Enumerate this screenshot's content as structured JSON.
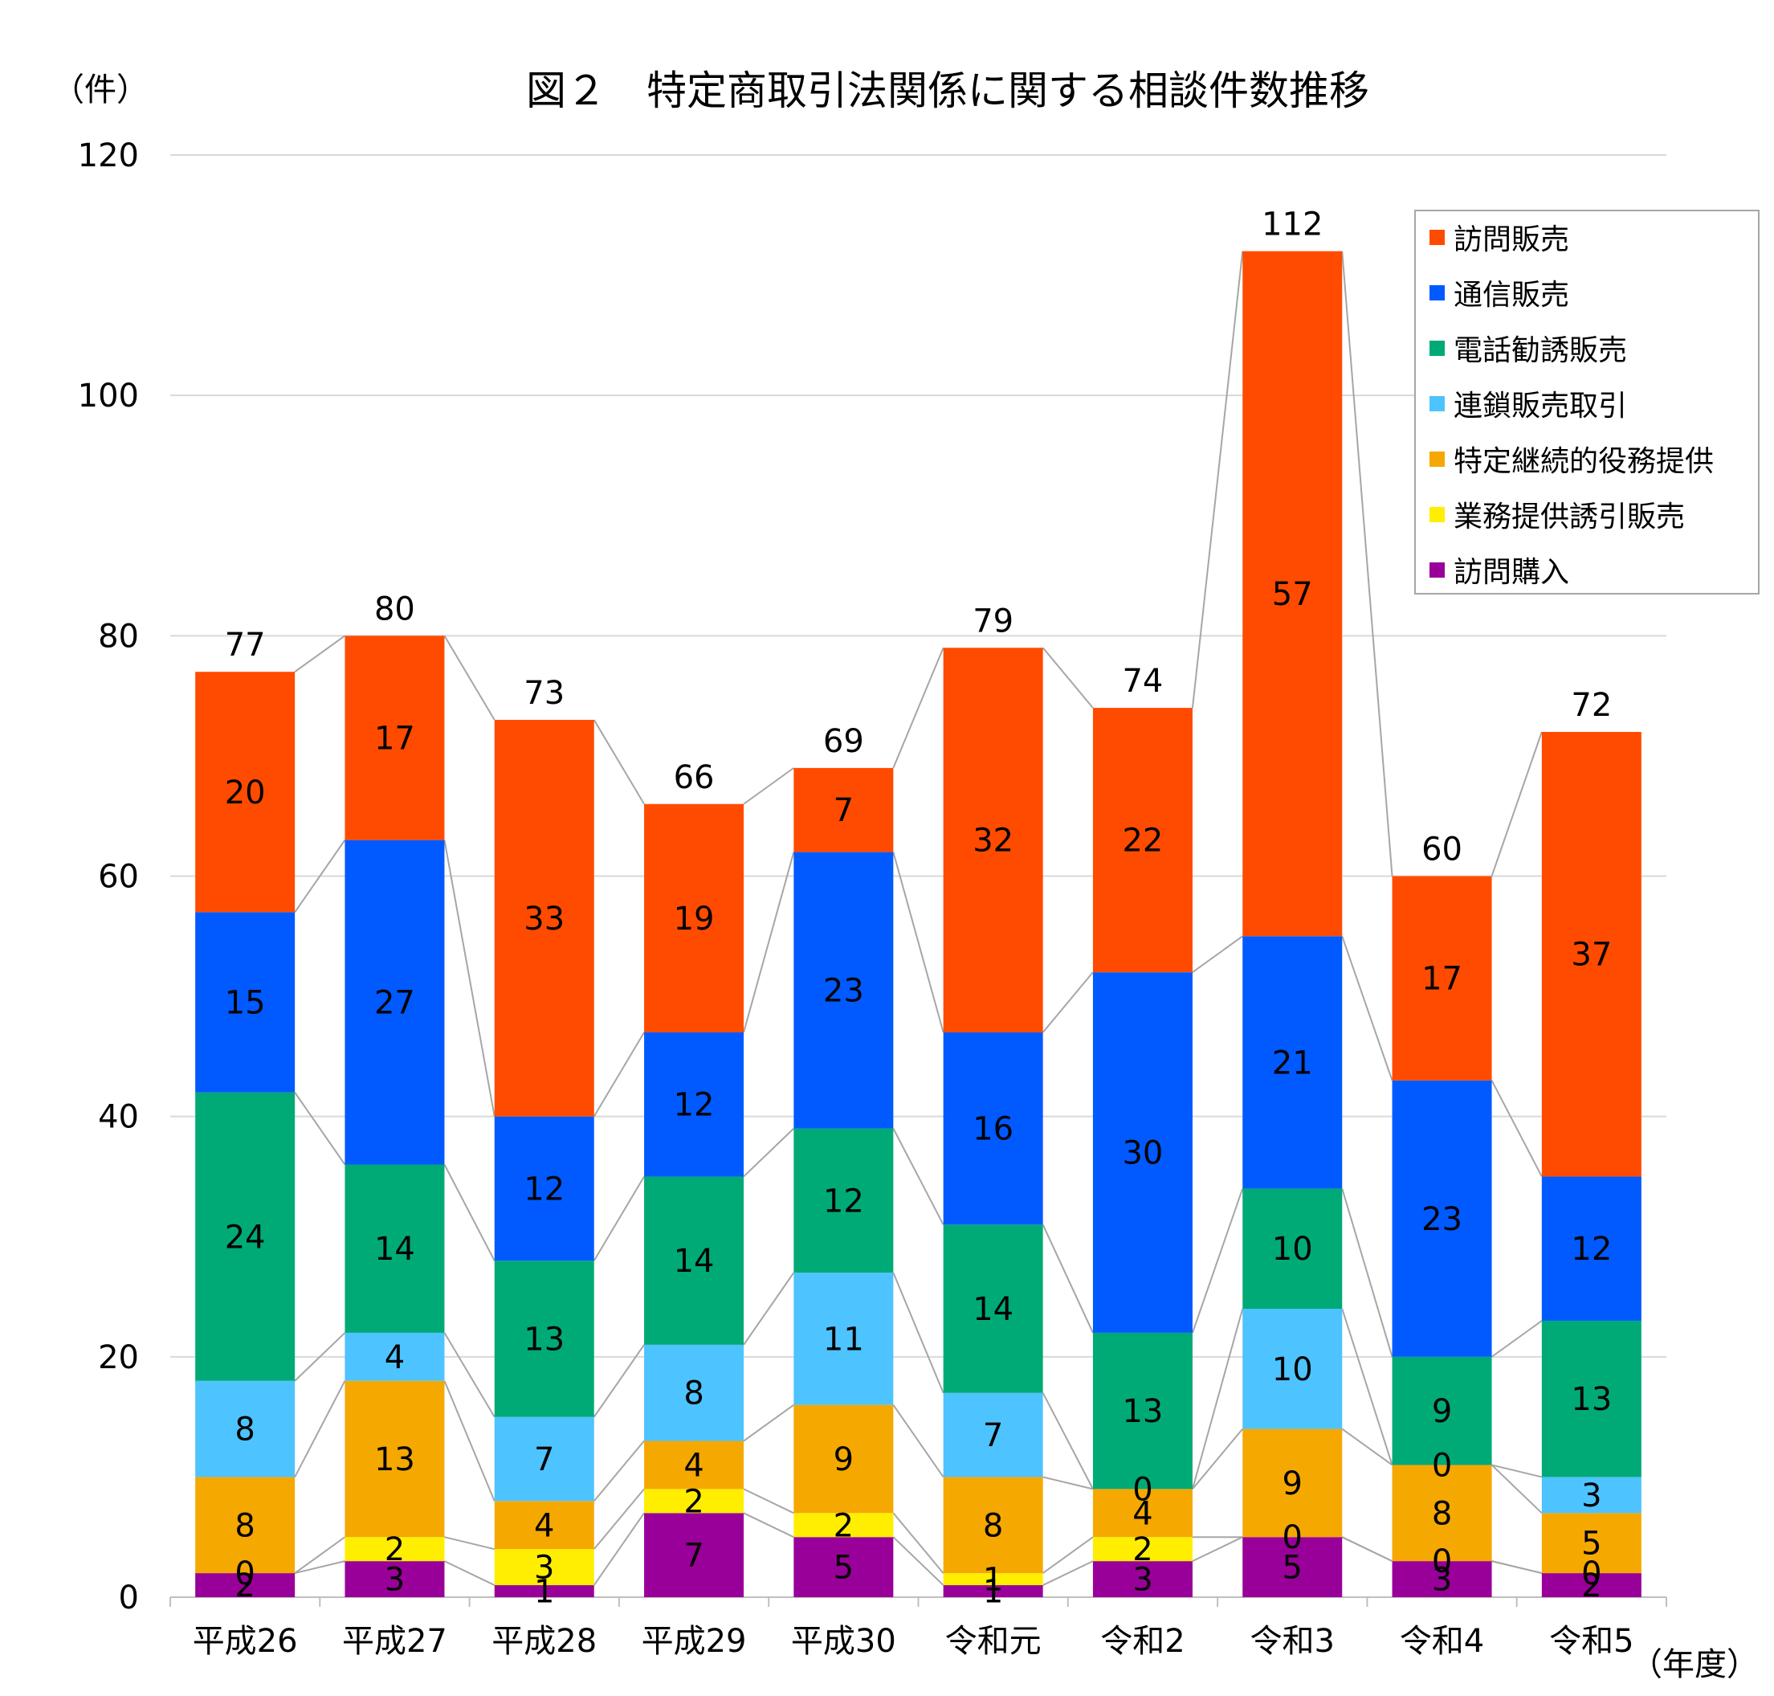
{
  "chart_data": {
    "type": "bar",
    "stacked": true,
    "title": "図２　特定商取引法関係に関する相談件数推移",
    "ylabel": "（件）",
    "xlabel": "（年度）",
    "ylim": [
      0,
      120
    ],
    "yticks": [
      "0",
      "20",
      "40",
      "60",
      "80",
      "100",
      "120"
    ],
    "categories": [
      "平成26",
      "平成27",
      "平成28",
      "平成29",
      "平成30",
      "令和元",
      "令和2",
      "令和3",
      "令和4",
      "令和5"
    ],
    "series": [
      {
        "name": "訪問購入",
        "color": "#990099",
        "values": [
          2,
          3,
          1,
          7,
          5,
          1,
          3,
          5,
          3,
          2
        ]
      },
      {
        "name": "業務提供誘引販売",
        "color": "#ffee00",
        "values": [
          0,
          2,
          3,
          2,
          2,
          1,
          2,
          0,
          0,
          0
        ]
      },
      {
        "name": "特定継続的役務提供",
        "color": "#f5a800",
        "values": [
          8,
          13,
          4,
          4,
          9,
          8,
          4,
          9,
          8,
          5
        ]
      },
      {
        "name": "連鎖販売取引",
        "color": "#4dc3ff",
        "values": [
          8,
          4,
          7,
          8,
          11,
          7,
          0,
          10,
          0,
          3
        ]
      },
      {
        "name": "電話勧誘販売",
        "color": "#00aa77",
        "values": [
          24,
          14,
          13,
          14,
          12,
          14,
          13,
          10,
          9,
          13
        ]
      },
      {
        "name": "通信販売",
        "color": "#005aff",
        "values": [
          15,
          27,
          12,
          12,
          23,
          16,
          30,
          21,
          23,
          12
        ]
      },
      {
        "name": "訪問販売",
        "color": "#ff4b00",
        "values": [
          20,
          17,
          33,
          19,
          7,
          32,
          22,
          57,
          17,
          37
        ]
      }
    ],
    "totals": [
      77,
      80,
      73,
      66,
      69,
      79,
      74,
      112,
      60,
      72
    ],
    "legend": {
      "position": "top-right",
      "order": [
        "訪問販売",
        "通信販売",
        "電話勧誘販売",
        "連鎖販売取引",
        "特定継続的役務提供",
        "業務提供誘引販売",
        "訪問購入"
      ]
    },
    "grid": true,
    "series_lines": true
  }
}
